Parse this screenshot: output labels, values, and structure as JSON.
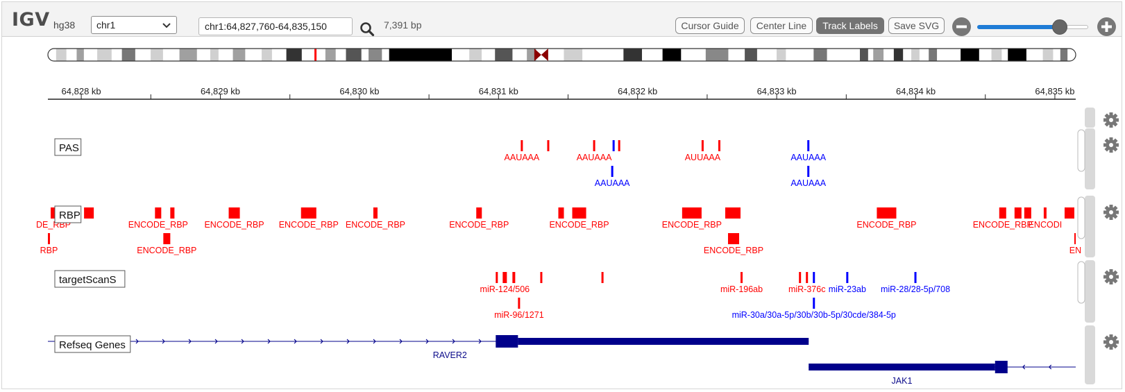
{
  "toolbar": {
    "logo": "IGV",
    "genome": "hg38",
    "chromosome": "chr1",
    "locus": "chr1:64,827,760-64,835,150",
    "bp_width": "7,391 bp",
    "buttons": [
      "Cursor Guide",
      "Center Line",
      "Track Labels",
      "Save SVG"
    ],
    "active_button": "Track Labels",
    "zoom_level": 0.74
  },
  "colors": {
    "forward": "#ff0000",
    "reverse": "#0000ff",
    "gene": "#00008b",
    "gene_label": "#0a0a8a",
    "ruler": "#222222",
    "gear": "#777777"
  },
  "ruler": {
    "start_kb": 64827.76,
    "end_kb": 64835.15,
    "ticks": [
      {
        "kb": 64828,
        "label": "64,828 kb"
      },
      {
        "kb": 64829,
        "label": "64,829 kb"
      },
      {
        "kb": 64830,
        "label": "64,830 kb"
      },
      {
        "kb": 64831,
        "label": "64,831 kb"
      },
      {
        "kb": 64832,
        "label": "64,832 kb"
      },
      {
        "kb": 64833,
        "label": "64,833 kb"
      },
      {
        "kb": 64834,
        "label": "64,834 kb"
      },
      {
        "kb": 64835,
        "label": "64,835 kb"
      }
    ]
  },
  "ideogram": {
    "centromere_fraction": 0.48,
    "current_position_fraction": 0.26,
    "bands": [
      {
        "s": 0.008,
        "e": 0.018,
        "c": "#d0d0d0"
      },
      {
        "s": 0.028,
        "e": 0.035,
        "c": "#a0a0a0"
      },
      {
        "s": 0.048,
        "e": 0.062,
        "c": "#d0d0d0"
      },
      {
        "s": 0.072,
        "e": 0.085,
        "c": "#777777"
      },
      {
        "s": 0.1,
        "e": 0.112,
        "c": "#d0d0d0"
      },
      {
        "s": 0.128,
        "e": 0.145,
        "c": "#a0a0a0"
      },
      {
        "s": 0.158,
        "e": 0.166,
        "c": "#d0d0d0"
      },
      {
        "s": 0.18,
        "e": 0.192,
        "c": "#a0a0a0"
      },
      {
        "s": 0.208,
        "e": 0.218,
        "c": "#d0d0d0"
      },
      {
        "s": 0.232,
        "e": 0.247,
        "c": "#333333"
      },
      {
        "s": 0.27,
        "e": 0.28,
        "c": "#a0a0a0"
      },
      {
        "s": 0.29,
        "e": 0.305,
        "c": "#555555"
      },
      {
        "s": 0.312,
        "e": 0.325,
        "c": "#888888"
      },
      {
        "s": 0.332,
        "e": 0.393,
        "c": "#000000"
      },
      {
        "s": 0.41,
        "e": 0.422,
        "c": "#d0d0d0"
      },
      {
        "s": 0.435,
        "e": 0.452,
        "c": "#555555"
      },
      {
        "s": 0.466,
        "e": 0.475,
        "c": "#a0a0a0"
      },
      {
        "s": 0.502,
        "e": 0.52,
        "c": "#d0d0d0"
      },
      {
        "s": 0.56,
        "e": 0.578,
        "c": "#333333"
      },
      {
        "s": 0.598,
        "e": 0.616,
        "c": "#000000"
      },
      {
        "s": 0.64,
        "e": 0.662,
        "c": "#888888"
      },
      {
        "s": 0.678,
        "e": 0.69,
        "c": "#555555"
      },
      {
        "s": 0.709,
        "e": 0.718,
        "c": "#d0d0d0"
      },
      {
        "s": 0.745,
        "e": 0.758,
        "c": "#777777"
      },
      {
        "s": 0.79,
        "e": 0.798,
        "c": "#555555"
      },
      {
        "s": 0.803,
        "e": 0.813,
        "c": "#a0a0a0"
      },
      {
        "s": 0.823,
        "e": 0.832,
        "c": "#333333"
      },
      {
        "s": 0.84,
        "e": 0.848,
        "c": "#d0d0d0"
      },
      {
        "s": 0.857,
        "e": 0.865,
        "c": "#777777"
      },
      {
        "s": 0.888,
        "e": 0.906,
        "c": "#000000"
      },
      {
        "s": 0.918,
        "e": 0.928,
        "c": "#d0d0d0"
      },
      {
        "s": 0.934,
        "e": 0.952,
        "c": "#000000"
      },
      {
        "s": 0.968,
        "e": 0.978,
        "c": "#d0d0d0"
      },
      {
        "s": 0.985,
        "e": 0.992,
        "c": "#777777"
      }
    ]
  },
  "tracks": [
    {
      "name": "PAS",
      "features": [
        {
          "kb": 64831.16,
          "w": 0.012,
          "strand": "+",
          "row": 0,
          "label": "AAUAAA"
        },
        {
          "kb": 64831.35,
          "w": 0.012,
          "strand": "+",
          "row": 0,
          "label": ""
        },
        {
          "kb": 64831.68,
          "w": 0.012,
          "strand": "+",
          "row": 0,
          "label": "AAUAAA"
        },
        {
          "kb": 64831.82,
          "w": 0.012,
          "strand": "-",
          "row": 0,
          "label": ""
        },
        {
          "kb": 64831.86,
          "w": 0.012,
          "strand": "+",
          "row": 0,
          "label": ""
        },
        {
          "kb": 64832.46,
          "w": 0.012,
          "strand": "+",
          "row": 0,
          "label": "AUUAAA"
        },
        {
          "kb": 64832.58,
          "w": 0.012,
          "strand": "+",
          "row": 0,
          "label": ""
        },
        {
          "kb": 64833.22,
          "w": 0.012,
          "strand": "-",
          "row": 0,
          "label": "AAUAAA"
        },
        {
          "kb": 64831.81,
          "w": 0.012,
          "strand": "-",
          "row": 1,
          "label": "AAUAAA"
        },
        {
          "kb": 64833.22,
          "w": 0.012,
          "strand": "-",
          "row": 1,
          "label": "AAUAAA"
        }
      ]
    },
    {
      "name": "RBP",
      "features": [
        {
          "kb": 64827.78,
          "w": 0.04,
          "strand": "+",
          "row": 0,
          "label": "DE_RBP"
        },
        {
          "kb": 64828.02,
          "w": 0.07,
          "strand": "+",
          "row": 0,
          "label": ""
        },
        {
          "kb": 64828.53,
          "w": 0.045,
          "strand": "+",
          "row": 0,
          "label": "ENCODE_RBP"
        },
        {
          "kb": 64828.64,
          "w": 0.03,
          "strand": "+",
          "row": 0,
          "label": ""
        },
        {
          "kb": 64829.06,
          "w": 0.08,
          "strand": "+",
          "row": 0,
          "label": "ENCODE_RBP"
        },
        {
          "kb": 64829.58,
          "w": 0.11,
          "strand": "+",
          "row": 0,
          "label": "ENCODE_RBP"
        },
        {
          "kb": 64830.1,
          "w": 0.03,
          "strand": "+",
          "row": 0,
          "label": "ENCODE_RBP"
        },
        {
          "kb": 64830.84,
          "w": 0.04,
          "strand": "+",
          "row": 0,
          "label": "ENCODE_RBP"
        },
        {
          "kb": 64831.43,
          "w": 0.04,
          "strand": "+",
          "row": 0,
          "label": ""
        },
        {
          "kb": 64831.53,
          "w": 0.1,
          "strand": "+",
          "row": 0,
          "label": "ENCODE_RBP"
        },
        {
          "kb": 64832.32,
          "w": 0.14,
          "strand": "+",
          "row": 0,
          "label": "ENCODE_RBP"
        },
        {
          "kb": 64832.63,
          "w": 0.11,
          "strand": "+",
          "row": 0,
          "label": ""
        },
        {
          "kb": 64833.72,
          "w": 0.14,
          "strand": "+",
          "row": 0,
          "label": "ENCODE_RBP"
        },
        {
          "kb": 64834.6,
          "w": 0.05,
          "strand": "+",
          "row": 0,
          "label": "ENCODE_RBP"
        },
        {
          "kb": 64834.71,
          "w": 0.05,
          "strand": "+",
          "row": 0,
          "label": ""
        },
        {
          "kb": 64834.78,
          "w": 0.05,
          "strand": "+",
          "row": 0,
          "label": ""
        },
        {
          "kb": 64834.92,
          "w": 0.02,
          "strand": "+",
          "row": 0,
          "label": "ENCODI"
        },
        {
          "kb": 64835.07,
          "w": 0.07,
          "strand": "+",
          "row": 0,
          "label": ""
        },
        {
          "kb": 64827.76,
          "w": 0.01,
          "strand": "+",
          "row": 1,
          "label": "RBP"
        },
        {
          "kb": 64828.59,
          "w": 0.05,
          "strand": "+",
          "row": 1,
          "label": "ENCODE_RBP"
        },
        {
          "kb": 64832.65,
          "w": 0.08,
          "strand": "+",
          "row": 1,
          "label": "ENCODE_RBP"
        },
        {
          "kb": 64835.14,
          "w": 0.01,
          "strand": "+",
          "row": 1,
          "label": "EN"
        }
      ]
    },
    {
      "name": "targetScanS",
      "features": [
        {
          "kb": 64830.98,
          "w": 0.015,
          "strand": "+",
          "row": 0,
          "label": ""
        },
        {
          "kb": 64831.03,
          "w": 0.03,
          "strand": "+",
          "row": 0,
          "label": "miR-124/506"
        },
        {
          "kb": 64831.1,
          "w": 0.02,
          "strand": "+",
          "row": 0,
          "label": ""
        },
        {
          "kb": 64831.3,
          "w": 0.012,
          "strand": "+",
          "row": 0,
          "label": ""
        },
        {
          "kb": 64831.74,
          "w": 0.012,
          "strand": "+",
          "row": 0,
          "label": ""
        },
        {
          "kb": 64832.74,
          "w": 0.012,
          "strand": "+",
          "row": 0,
          "label": "miR-196ab"
        },
        {
          "kb": 64833.16,
          "w": 0.012,
          "strand": "+",
          "row": 0,
          "label": ""
        },
        {
          "kb": 64833.21,
          "w": 0.012,
          "strand": "+",
          "row": 0,
          "label": "miR-376c"
        },
        {
          "kb": 64833.26,
          "w": 0.012,
          "strand": "-",
          "row": 0,
          "label": ""
        },
        {
          "kb": 64833.5,
          "w": 0.012,
          "strand": "-",
          "row": 0,
          "label": "miR-23ab"
        },
        {
          "kb": 64833.99,
          "w": 0.012,
          "strand": "-",
          "row": 0,
          "label": "miR-28/28-5p/708"
        },
        {
          "kb": 64831.14,
          "w": 0.012,
          "strand": "+",
          "row": 1,
          "label": "miR-96/1271"
        },
        {
          "kb": 64833.26,
          "w": 0.012,
          "strand": "-",
          "row": 1,
          "label": "miR-30a/30a-5p/30b/30b-5p/30cde/384-5p"
        }
      ]
    },
    {
      "name": "Refseq Genes",
      "genes": [
        {
          "name": "RAVER2",
          "strand": "+",
          "start_kb": 64827.76,
          "end_kb": 64833.23,
          "cds_start_kb": 64831.0,
          "thick_start_kb": 64831.14,
          "thick_end_kb": 64833.23,
          "utr_exon": [
            64830.98,
            64831.14
          ],
          "row": 0
        },
        {
          "name": "JAK1",
          "strand": "-",
          "start_kb": 64833.23,
          "end_kb": 64835.15,
          "thick_start_kb": 64833.23,
          "thick_end_kb": 64834.57,
          "utr_exon": [
            64834.57,
            64834.66
          ],
          "row": 1
        }
      ]
    }
  ]
}
